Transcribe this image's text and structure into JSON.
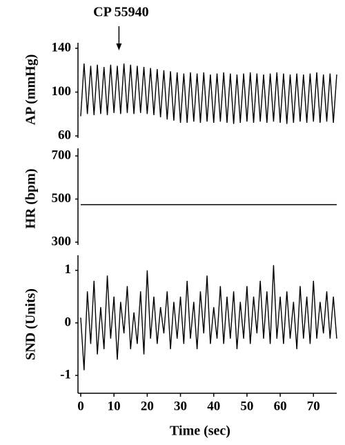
{
  "chart_data": [
    {
      "type": "line",
      "ylabel": "AP (mmHg)",
      "ylim": [
        60,
        140
      ],
      "yticks": [
        60,
        100,
        140
      ],
      "color": "#000000",
      "annotation": {
        "text": "CP 55940",
        "x": 11.5
      },
      "x": [
        0,
        1,
        2,
        3,
        4,
        5,
        6,
        7,
        8,
        9,
        10,
        11,
        12,
        13,
        14,
        15,
        16,
        17,
        18,
        19,
        20,
        21,
        22,
        23,
        24,
        25,
        26,
        27,
        28,
        29,
        30,
        31,
        32,
        33,
        34,
        35,
        36,
        37,
        38,
        39,
        40,
        41,
        42,
        43,
        44,
        45,
        46,
        47,
        48,
        49,
        50,
        51,
        52,
        53,
        54,
        55,
        56,
        57,
        58,
        59,
        60,
        61,
        62,
        63,
        64,
        65,
        66,
        67,
        68,
        69,
        70,
        71,
        72,
        73,
        74,
        75,
        76,
        77
      ],
      "values": [
        78,
        126,
        80,
        124,
        79,
        125,
        80,
        123,
        79,
        125,
        81,
        124,
        80,
        126,
        81,
        125,
        80,
        124,
        81,
        123,
        80,
        122,
        79,
        121,
        77,
        120,
        75,
        119,
        74,
        118,
        72,
        117,
        72,
        118,
        73,
        117,
        72,
        118,
        73,
        116,
        72,
        117,
        73,
        118,
        72,
        117,
        71,
        116,
        72,
        117,
        73,
        118,
        72,
        117,
        73,
        116,
        72,
        117,
        73,
        118,
        72,
        117,
        71,
        116,
        72,
        117,
        73,
        116,
        72,
        117,
        73,
        118,
        72,
        116,
        73,
        117,
        72,
        116
      ]
    },
    {
      "type": "line",
      "ylabel": "HR (bpm)",
      "ylim": [
        300,
        700
      ],
      "yticks": [
        300,
        500,
        700
      ],
      "color": "#000000",
      "x": [
        0,
        77
      ],
      "values": [
        474,
        474
      ]
    },
    {
      "type": "line",
      "ylabel": "SND (Units)",
      "ylim": [
        -1.3,
        1.3
      ],
      "yticks": [
        -1,
        0,
        1
      ],
      "color": "#000000",
      "xlabel": "Time (sec)",
      "xlim": [
        0,
        77
      ],
      "xticks": [
        0,
        10,
        20,
        30,
        40,
        50,
        60,
        70
      ],
      "x": [
        0,
        1,
        2,
        3,
        4,
        5,
        6,
        7,
        8,
        9,
        10,
        11,
        12,
        13,
        14,
        15,
        16,
        17,
        18,
        19,
        20,
        21,
        22,
        23,
        24,
        25,
        26,
        27,
        28,
        29,
        30,
        31,
        32,
        33,
        34,
        35,
        36,
        37,
        38,
        39,
        40,
        41,
        42,
        43,
        44,
        45,
        46,
        47,
        48,
        49,
        50,
        51,
        52,
        53,
        54,
        55,
        56,
        57,
        58,
        59,
        60,
        61,
        62,
        63,
        64,
        65,
        66,
        67,
        68,
        69,
        70,
        71,
        72,
        73,
        74,
        75,
        76,
        77
      ],
      "values": [
        0.1,
        -0.9,
        0.6,
        -0.4,
        0.8,
        -0.6,
        0.3,
        -0.5,
        0.9,
        -0.3,
        0.5,
        -0.7,
        0.4,
        -0.2,
        0.7,
        -0.5,
        0.2,
        -0.4,
        0.6,
        -0.6,
        1.0,
        -0.3,
        0.5,
        -0.4,
        0.3,
        -0.2,
        0.6,
        -0.5,
        0.4,
        -0.3,
        0.5,
        -0.4,
        0.8,
        -0.3,
        0.4,
        -0.5,
        0.6,
        -0.2,
        0.9,
        -0.4,
        0.3,
        -0.3,
        0.7,
        -0.4,
        0.5,
        -0.3,
        0.6,
        -0.5,
        0.4,
        -0.3,
        0.7,
        -0.4,
        0.5,
        -0.2,
        0.8,
        -0.3,
        0.6,
        -0.4,
        1.1,
        -0.3,
        0.5,
        -0.4,
        0.6,
        -0.3,
        0.4,
        -0.5,
        0.7,
        -0.3,
        0.5,
        -0.4,
        0.8,
        -0.3,
        0.4,
        -0.2,
        0.6,
        -0.3,
        0.5,
        -0.3
      ]
    }
  ]
}
